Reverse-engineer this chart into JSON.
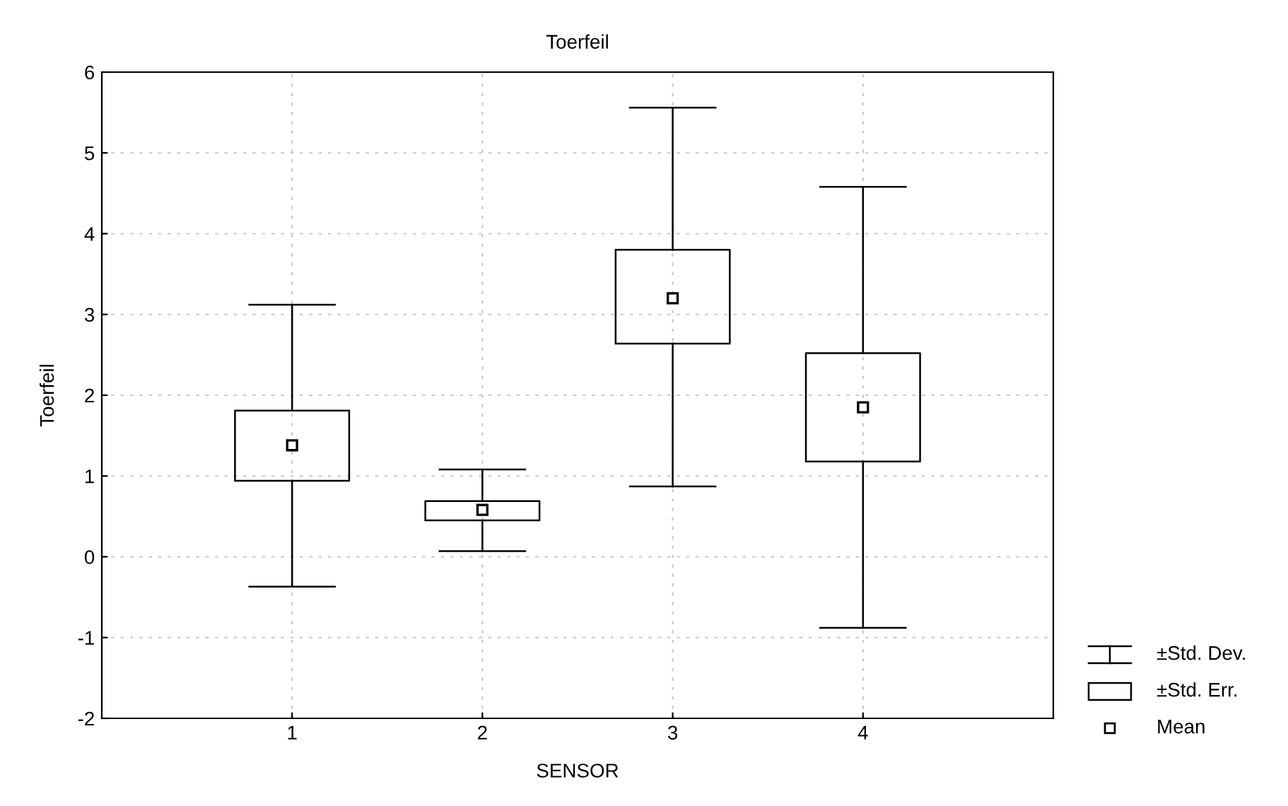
{
  "chart_data": {
    "type": "box",
    "title": "Toerfeil",
    "xlabel": "SENSOR",
    "ylabel": "Toerfeil",
    "categories": [
      "1",
      "2",
      "3",
      "4"
    ],
    "boxes": [
      {
        "low": -0.37,
        "q1": 0.94,
        "q3": 1.81,
        "high": 3.12,
        "mean": 1.38
      },
      {
        "low": 0.07,
        "q1": 0.45,
        "q3": 0.69,
        "high": 1.08,
        "mean": 0.58
      },
      {
        "low": 0.87,
        "q1": 2.64,
        "q3": 3.8,
        "high": 5.56,
        "mean": 3.2
      },
      {
        "low": -0.88,
        "q1": 1.18,
        "q3": 2.52,
        "high": 4.58,
        "mean": 1.85
      }
    ],
    "annotations": [
      "±Std. Dev.",
      "±Std. Err.",
      "Mean"
    ],
    "ylim": [
      -2,
      6
    ],
    "yticks": [
      -2,
      -1,
      0,
      1,
      2,
      3,
      4,
      5,
      6
    ],
    "grid": true,
    "marker": "square"
  }
}
